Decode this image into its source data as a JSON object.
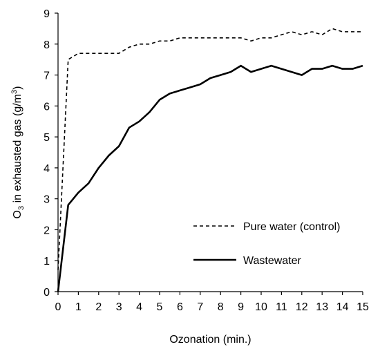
{
  "chart_data": {
    "type": "line",
    "xlabel": "Ozonation (min.)",
    "ylabel_parts": {
      "prefix": "O",
      "subscript": "3",
      "middle": " in exhausted gas  (g/m",
      "superscript": "3",
      "suffix": ")"
    },
    "xlim": [
      0,
      15
    ],
    "ylim": [
      0,
      9
    ],
    "x_ticks": [
      "0",
      "1",
      "2",
      "3",
      "4",
      "5",
      "6",
      "7",
      "8",
      "9",
      "10",
      "11",
      "12",
      "13",
      "14",
      "15"
    ],
    "y_ticks": [
      "0",
      "1",
      "2",
      "3",
      "4",
      "5",
      "6",
      "7",
      "8",
      "9"
    ],
    "grid": false,
    "legend_position": "lower-right",
    "series": [
      {
        "name": "Pure water (control)",
        "style": "dashed",
        "color": "#000000",
        "x": [
          0,
          0.5,
          1,
          1.5,
          2,
          2.5,
          3,
          3.5,
          4,
          4.5,
          5,
          5.5,
          6,
          6.5,
          7,
          7.5,
          8,
          8.5,
          9,
          9.5,
          10,
          10.5,
          11,
          11.5,
          12,
          12.5,
          13,
          13.5,
          14,
          14.5,
          15
        ],
        "y": [
          0.7,
          7.5,
          7.7,
          7.7,
          7.7,
          7.7,
          7.7,
          7.9,
          8.0,
          8.0,
          8.1,
          8.1,
          8.2,
          8.2,
          8.2,
          8.2,
          8.2,
          8.2,
          8.2,
          8.1,
          8.2,
          8.2,
          8.3,
          8.4,
          8.3,
          8.4,
          8.3,
          8.5,
          8.4,
          8.4,
          8.4
        ]
      },
      {
        "name": "Wastewater",
        "style": "solid",
        "color": "#000000",
        "x": [
          0,
          0.5,
          1,
          1.5,
          2,
          2.5,
          3,
          3.5,
          4,
          4.5,
          5,
          5.5,
          6,
          6.5,
          7,
          7.5,
          8,
          8.5,
          9,
          9.5,
          10,
          10.5,
          11,
          11.5,
          12,
          12.5,
          13,
          13.5,
          14,
          14.5,
          15
        ],
        "y": [
          0,
          2.8,
          3.2,
          3.5,
          4.0,
          4.4,
          4.7,
          5.3,
          5.5,
          5.8,
          6.2,
          6.4,
          6.5,
          6.6,
          6.7,
          6.9,
          7.0,
          7.1,
          7.3,
          7.1,
          7.2,
          7.3,
          7.2,
          7.1,
          7.0,
          7.2,
          7.2,
          7.3,
          7.2,
          7.2,
          7.3
        ]
      }
    ]
  }
}
